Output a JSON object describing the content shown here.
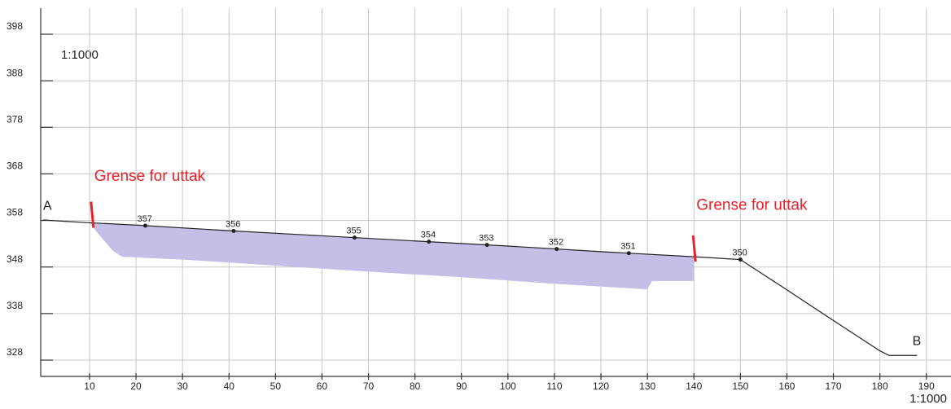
{
  "chart_data": {
    "type": "line",
    "scale_labels": [
      "1:1000",
      "1:1000"
    ],
    "x": [
      0,
      5,
      10,
      20,
      40,
      60,
      80,
      100,
      120,
      140,
      150,
      160,
      170,
      180,
      182,
      188
    ],
    "series": [
      {
        "color": "#222222",
        "values": [
          358.1,
          357.8,
          357.5,
          357,
          355.8,
          354.7,
          353.6,
          352.5,
          351.3,
          350.2,
          349.6,
          343.1,
          336.5,
          330,
          329,
          329
        ]
      }
    ],
    "area": {
      "color": "#c4bfe6",
      "x": [
        10,
        20,
        40,
        60,
        80,
        100,
        120,
        140,
        140,
        131,
        130,
        110,
        90,
        70,
        50,
        30,
        17,
        15,
        12
      ],
      "y": [
        357.5,
        357,
        355.8,
        354.7,
        353.6,
        352.5,
        351.3,
        350.2,
        345,
        345,
        343.2,
        344.4,
        345.8,
        347,
        348.3,
        349.6,
        350.2,
        351.5,
        355
      ]
    },
    "point_labels": [
      {
        "text": "357",
        "x": 22
      },
      {
        "text": "356",
        "x": 41
      },
      {
        "text": "355",
        "x": 67
      },
      {
        "text": "354",
        "x": 83
      },
      {
        "text": "353",
        "x": 95.5
      },
      {
        "text": "352",
        "x": 110.5
      },
      {
        "text": "351",
        "x": 126
      },
      {
        "text": "350",
        "x": 150
      }
    ],
    "end_labels": [
      {
        "text": "A",
        "x": 0,
        "y": 361
      },
      {
        "text": "B",
        "x": 187,
        "y": 332
      }
    ],
    "annotations": [
      {
        "text": "Grense for uttak",
        "x": 10.5,
        "y": 367.4,
        "color": "#e8202a"
      },
      {
        "text": "Grense for uttak",
        "x": 140,
        "y": 361.2,
        "color": "#e8202a"
      }
    ],
    "xlim": [
      -0.5,
      195.3
    ],
    "ylim": [
      324.5,
      403.6
    ],
    "xticks": [
      10,
      20,
      30,
      40,
      50,
      60,
      70,
      80,
      90,
      100,
      110,
      120,
      130,
      140,
      150,
      160,
      170,
      180,
      190
    ],
    "yticks": [
      328,
      338,
      348,
      358,
      368,
      378,
      388,
      398
    ],
    "grid": true
  }
}
